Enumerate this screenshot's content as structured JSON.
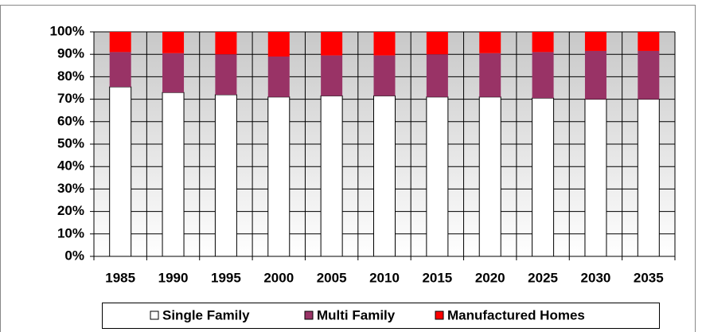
{
  "chart_data": {
    "type": "stacked_bar",
    "categories": [
      "1985",
      "1990",
      "1995",
      "2000",
      "2005",
      "2010",
      "2015",
      "2020",
      "2025",
      "2030",
      "2035"
    ],
    "series": [
      {
        "name": "Single Family",
        "color": "#ffffff",
        "values": [
          75.5,
          73,
          72,
          71,
          71.5,
          71.5,
          71,
          71,
          70.5,
          70,
          70
        ]
      },
      {
        "name": "Multi Family",
        "color": "#993366",
        "values": [
          15.5,
          17.5,
          18,
          18,
          18,
          18,
          19,
          19.5,
          20.5,
          21.5,
          21.5
        ]
      },
      {
        "name": "Manufactured Homes",
        "color": "#ff0000",
        "values": [
          9,
          9.5,
          10,
          11,
          10.5,
          10.5,
          10,
          9.5,
          9,
          8.5,
          8.5
        ]
      }
    ],
    "ylim": [
      0,
      100
    ],
    "yticks": [
      {
        "value": 0,
        "label": "0%"
      },
      {
        "value": 10,
        "label": "10%"
      },
      {
        "value": 20,
        "label": "20%"
      },
      {
        "value": 30,
        "label": "30%"
      },
      {
        "value": 40,
        "label": "40%"
      },
      {
        "value": 50,
        "label": "50%"
      },
      {
        "value": 60,
        "label": "60%"
      },
      {
        "value": 70,
        "label": "70%"
      },
      {
        "value": 80,
        "label": "80%"
      },
      {
        "value": 90,
        "label": "90%"
      },
      {
        "value": 100,
        "label": "100%"
      }
    ],
    "grid": true,
    "legend": "bottom"
  }
}
